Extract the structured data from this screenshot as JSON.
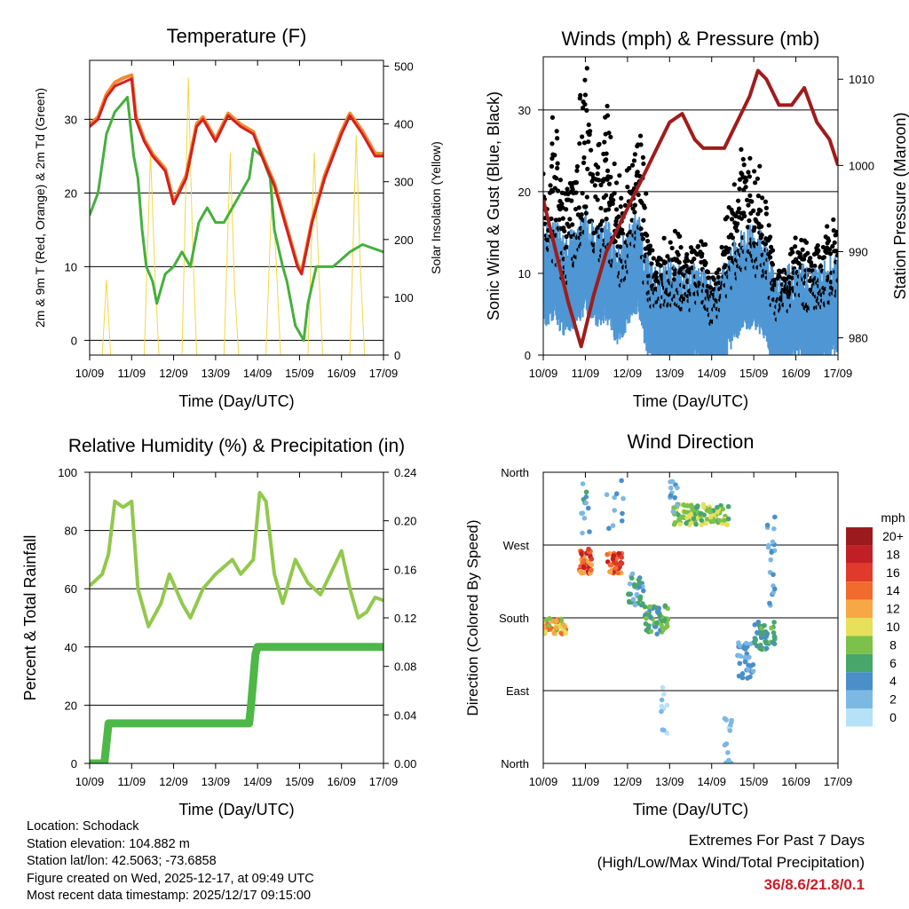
{
  "chart_data": [
    {
      "type": "line",
      "title": "Temperature (F)",
      "xlabel": "Time (Day/UTC)",
      "ylabel": "2m & 9m T (Red, Orange) & 2m Td (Green)",
      "ylabel_right": "Solar Insolation (Yellow)",
      "x_ticks": [
        "10/09",
        "11/09",
        "12/09",
        "13/09",
        "14/09",
        "15/09",
        "16/09",
        "17/09"
      ],
      "xlim": [
        0,
        7
      ],
      "ylim": [
        -2,
        38
      ],
      "y_ticks": [
        0,
        10,
        20,
        30
      ],
      "ylim_right": [
        0,
        510
      ],
      "y_ticks_right": [
        0,
        100,
        200,
        300,
        400,
        500
      ],
      "grid": true,
      "series": [
        {
          "name": "2m T",
          "color": "#d42020",
          "x": [
            0,
            0.2,
            0.4,
            0.6,
            0.8,
            1.0,
            1.1,
            1.3,
            1.5,
            1.8,
            2.0,
            2.3,
            2.55,
            2.7,
            3.0,
            3.3,
            3.6,
            3.9,
            4.1,
            4.4,
            4.7,
            4.95,
            5.05,
            5.3,
            5.6,
            6.0,
            6.2,
            6.5,
            6.8,
            7.0
          ],
          "y": [
            29,
            30,
            33,
            34.5,
            35,
            35.5,
            30,
            27,
            25,
            23,
            18.5,
            22,
            29,
            30,
            27,
            30.5,
            29,
            28,
            25,
            21,
            15,
            10,
            9,
            16,
            22,
            28,
            30.5,
            28,
            25,
            25
          ]
        },
        {
          "name": "9m T",
          "color": "#f08a30",
          "x": [
            0,
            0.2,
            0.4,
            0.6,
            0.8,
            1.0,
            1.1,
            1.3,
            1.5,
            1.8,
            2.0,
            2.3,
            2.55,
            2.7,
            3.0,
            3.3,
            3.6,
            3.9,
            4.1,
            4.4,
            4.7,
            4.95,
            5.05,
            5.3,
            5.6,
            6.0,
            6.2,
            6.5,
            6.8,
            7.0
          ],
          "y": [
            29.3,
            30.3,
            33.4,
            35,
            35.6,
            36,
            30.4,
            27.3,
            25.3,
            23.3,
            18.8,
            22.4,
            29.4,
            30.3,
            27.3,
            30.8,
            29.3,
            28.3,
            25.3,
            21.3,
            15.3,
            10.3,
            9.3,
            16.3,
            22.4,
            28.4,
            30.8,
            28.4,
            25.4,
            25.3
          ]
        },
        {
          "name": "2m Td",
          "color": "#44b03c",
          "x": [
            0,
            0.2,
            0.4,
            0.6,
            0.9,
            1.05,
            1.15,
            1.25,
            1.35,
            1.5,
            1.6,
            1.8,
            2.0,
            2.2,
            2.4,
            2.6,
            2.8,
            3.0,
            3.2,
            3.5,
            3.8,
            3.9,
            4.1,
            4.3,
            4.4,
            4.6,
            4.7,
            4.9,
            5.1,
            5.2,
            5.4,
            5.8,
            6.2,
            6.5,
            7.0
          ],
          "y": [
            17,
            20,
            28,
            31,
            33,
            25,
            22,
            15,
            10,
            8,
            5,
            9,
            10,
            12,
            10,
            16,
            18,
            16,
            16,
            19,
            22,
            26,
            25,
            22,
            15,
            10,
            8,
            2,
            0,
            5,
            10,
            10,
            12,
            13,
            12
          ]
        },
        {
          "name": "Solar Insolation",
          "color": "#f5d742",
          "axis": "right",
          "x": [
            0,
            0.3,
            0.4,
            0.5,
            1.3,
            1.45,
            1.55,
            1.65,
            2.2,
            2.35,
            2.45,
            2.55,
            3.2,
            3.35,
            3.45,
            3.55,
            4.2,
            4.35,
            4.45,
            4.55,
            5.2,
            5.35,
            5.45,
            5.55,
            6.2,
            6.35,
            6.45,
            6.55,
            7.0
          ],
          "y": [
            0,
            0,
            130,
            0,
            0,
            350,
            150,
            0,
            0,
            480,
            200,
            0,
            0,
            350,
            120,
            0,
            0,
            300,
            150,
            0,
            0,
            350,
            160,
            0,
            0,
            380,
            150,
            0,
            0
          ]
        }
      ]
    },
    {
      "type": "scatter",
      "title": "Winds (mph) & Pressure (mb)",
      "xlabel": "Time (Day/UTC)",
      "ylabel": "Sonic Wind & Gust (Blue, Black)",
      "ylabel_right": "Station Pressure (Maroon)",
      "x_ticks": [
        "10/09",
        "11/09",
        "12/09",
        "13/09",
        "14/09",
        "15/09",
        "16/09",
        "17/09"
      ],
      "xlim": [
        0,
        7
      ],
      "ylim": [
        0,
        36.5
      ],
      "y_ticks": [
        0,
        10,
        20,
        30
      ],
      "ylim_right": [
        978,
        1012.6
      ],
      "y_ticks_right": [
        980,
        990,
        1000,
        1010
      ],
      "grid": true,
      "series": [
        {
          "name": "Wind",
          "color": "#4f97d4",
          "x": [
            0,
            0.25,
            0.5,
            0.75,
            1.0,
            1.25,
            1.5,
            1.75,
            2.0,
            2.25,
            2.5,
            2.75,
            3.0,
            3.25,
            3.5,
            3.75,
            4.0,
            4.25,
            4.5,
            4.75,
            5.0,
            5.25,
            5.5,
            5.75,
            6.0,
            6.25,
            6.5,
            6.75,
            7.0
          ],
          "y": [
            10,
            11,
            9,
            10,
            12,
            10,
            11,
            8,
            10,
            12,
            6,
            5,
            6,
            5,
            5,
            6,
            3,
            5,
            8,
            10,
            10,
            9,
            4,
            5,
            6,
            5,
            5,
            6,
            7
          ]
        },
        {
          "name": "Gust",
          "color": "#000000",
          "x": [
            0,
            0.25,
            0.5,
            0.75,
            1.0,
            1.25,
            1.5,
            1.75,
            2.0,
            2.25,
            2.5,
            2.75,
            3.0,
            3.25,
            3.5,
            3.75,
            4.0,
            4.25,
            4.5,
            4.75,
            5.0,
            5.25,
            5.5,
            5.75,
            6.0,
            6.25,
            6.5,
            6.75,
            7.0
          ],
          "y": [
            16,
            19,
            14,
            16,
            24,
            18,
            20,
            13,
            16,
            20,
            10,
            8,
            10,
            9,
            9,
            10,
            6,
            9,
            13,
            17,
            16,
            15,
            7,
            8,
            10,
            9,
            9,
            10,
            12
          ]
        },
        {
          "name": "Pressure",
          "color": "#a01c1c",
          "axis": "right",
          "x": [
            0,
            0.3,
            0.6,
            0.9,
            1.2,
            1.5,
            2.0,
            2.5,
            3.0,
            3.3,
            3.6,
            3.8,
            4.0,
            4.3,
            4.6,
            4.9,
            5.1,
            5.3,
            5.6,
            5.9,
            6.2,
            6.5,
            6.8,
            7.0
          ],
          "y": [
            996,
            990,
            984,
            979,
            985,
            990,
            995,
            1000,
            1005,
            1006,
            1003,
            1002,
            1002,
            1002,
            1005,
            1008,
            1011,
            1010,
            1007,
            1007,
            1009,
            1005,
            1003,
            1000
          ]
        }
      ]
    },
    {
      "type": "line",
      "title": "Relative Humidity (%) & Precipitation (in)",
      "xlabel": "Time (Day/UTC)",
      "ylabel": "Percent & Total Rainfall",
      "x_ticks": [
        "10/09",
        "11/09",
        "12/09",
        "13/09",
        "14/09",
        "15/09",
        "16/09",
        "17/09"
      ],
      "xlim": [
        0,
        7
      ],
      "ylim": [
        0,
        100
      ],
      "y_ticks": [
        0,
        20,
        40,
        60,
        80,
        100
      ],
      "ylim_right": [
        0,
        0.24
      ],
      "y_ticks_right": [
        "0.00",
        "0.04",
        "0.08",
        "0.12",
        "0.16",
        "0.20",
        "0.24"
      ],
      "grid": true,
      "series": [
        {
          "name": "Relative Humidity",
          "color": "#92c84c",
          "x": [
            0,
            0.3,
            0.45,
            0.6,
            0.8,
            1.0,
            1.15,
            1.4,
            1.7,
            1.9,
            2.2,
            2.4,
            2.7,
            3.0,
            3.4,
            3.6,
            3.9,
            4.05,
            4.2,
            4.4,
            4.6,
            4.9,
            5.2,
            5.5,
            5.8,
            6.0,
            6.2,
            6.4,
            6.6,
            6.8,
            7.0
          ],
          "y": [
            61,
            65,
            72,
            90,
            88,
            90,
            60,
            47,
            55,
            65,
            55,
            50,
            60,
            65,
            70,
            65,
            70,
            93,
            90,
            65,
            55,
            70,
            62,
            58,
            67,
            73,
            60,
            50,
            52,
            57,
            56
          ]
        },
        {
          "name": "Total Precipitation",
          "color": "#4db848",
          "axis": "right",
          "x": [
            0,
            0.35,
            0.45,
            3.8,
            3.85,
            3.95,
            4.0,
            7.0
          ],
          "y": [
            0,
            0,
            0.033,
            0.033,
            0.05,
            0.09,
            0.096,
            0.096
          ]
        }
      ]
    },
    {
      "type": "scatter",
      "title": "Wind Direction",
      "xlabel": "Time (Day/UTC)",
      "ylabel": "Direction (Colored By Speed)",
      "x_ticks": [
        "10/09",
        "11/09",
        "12/09",
        "13/09",
        "14/09",
        "15/09",
        "16/09",
        "17/09"
      ],
      "xlim": [
        0,
        7
      ],
      "ylim": [
        0,
        360
      ],
      "y_ticks": [
        "North",
        "East",
        "South",
        "West",
        "North"
      ],
      "grid": true,
      "legend_title": "mph",
      "legend_labels": [
        "20+",
        "18",
        "16",
        "14",
        "12",
        "10",
        "8",
        "6",
        "4",
        "2",
        "0"
      ],
      "legend_colors": [
        "#9b1a1e",
        "#c01f26",
        "#e03a2c",
        "#f26a2c",
        "#f7a845",
        "#e6e05a",
        "#7cc14a",
        "#48a66b",
        "#4a8fc7",
        "#7cb8e4",
        "#b6e2f7"
      ],
      "clusters": [
        {
          "t": [
            0.0,
            0.55
          ],
          "dir": [
            160,
            180
          ],
          "speed": [
            8,
            16
          ],
          "n": 50
        },
        {
          "t": [
            0.85,
            1.15
          ],
          "dir": [
            235,
            265
          ],
          "speed": [
            12,
            20
          ],
          "n": 45
        },
        {
          "t": [
            0.9,
            1.1
          ],
          "dir": [
            280,
            350
          ],
          "speed": [
            2,
            8
          ],
          "n": 12
        },
        {
          "t": [
            1.5,
            1.9
          ],
          "dir": [
            235,
            260
          ],
          "speed": [
            12,
            20
          ],
          "n": 40
        },
        {
          "t": [
            1.5,
            1.9
          ],
          "dir": [
            290,
            350
          ],
          "speed": [
            2,
            6
          ],
          "n": 10
        },
        {
          "t": [
            2.0,
            2.4
          ],
          "dir": [
            195,
            235
          ],
          "speed": [
            2,
            8
          ],
          "n": 30
        },
        {
          "t": [
            2.4,
            3.0
          ],
          "dir": [
            160,
            195
          ],
          "speed": [
            4,
            10
          ],
          "n": 60
        },
        {
          "t": [
            2.8,
            2.95
          ],
          "dir": [
            30,
            100
          ],
          "speed": [
            0,
            4
          ],
          "n": 10
        },
        {
          "t": [
            3.1,
            4.4
          ],
          "dir": [
            295,
            320
          ],
          "speed": [
            6,
            12
          ],
          "n": 110
        },
        {
          "t": [
            3.0,
            3.2
          ],
          "dir": [
            310,
            350
          ],
          "speed": [
            2,
            5
          ],
          "n": 12
        },
        {
          "t": [
            4.3,
            4.5
          ],
          "dir": [
            0,
            60
          ],
          "speed": [
            0,
            4
          ],
          "n": 15
        },
        {
          "t": [
            4.6,
            5.0
          ],
          "dir": [
            105,
            150
          ],
          "speed": [
            2,
            6
          ],
          "n": 35
        },
        {
          "t": [
            5.0,
            5.5
          ],
          "dir": [
            140,
            175
          ],
          "speed": [
            4,
            9
          ],
          "n": 45
        },
        {
          "t": [
            5.3,
            5.5
          ],
          "dir": [
            190,
            310
          ],
          "speed": [
            2,
            5
          ],
          "n": 20
        }
      ]
    }
  ],
  "info": {
    "location": "Location: Schodack",
    "elevation": "Station elevation: 104.882 m",
    "latlon": "Station lat/lon: 42.5063; -73.6858",
    "created": "Figure created on Wed, 2025-12-17, at 09:49 UTC",
    "timestamp": "Most recent data timestamp: 2025/12/17 09:15:00"
  },
  "extremes": {
    "title": "Extremes For Past 7 Days",
    "subtitle": "(High/Low/Max Wind/Total Precipitation)",
    "values": "36/8.6/21.8/0.1",
    "values_color": "#c8202a"
  }
}
